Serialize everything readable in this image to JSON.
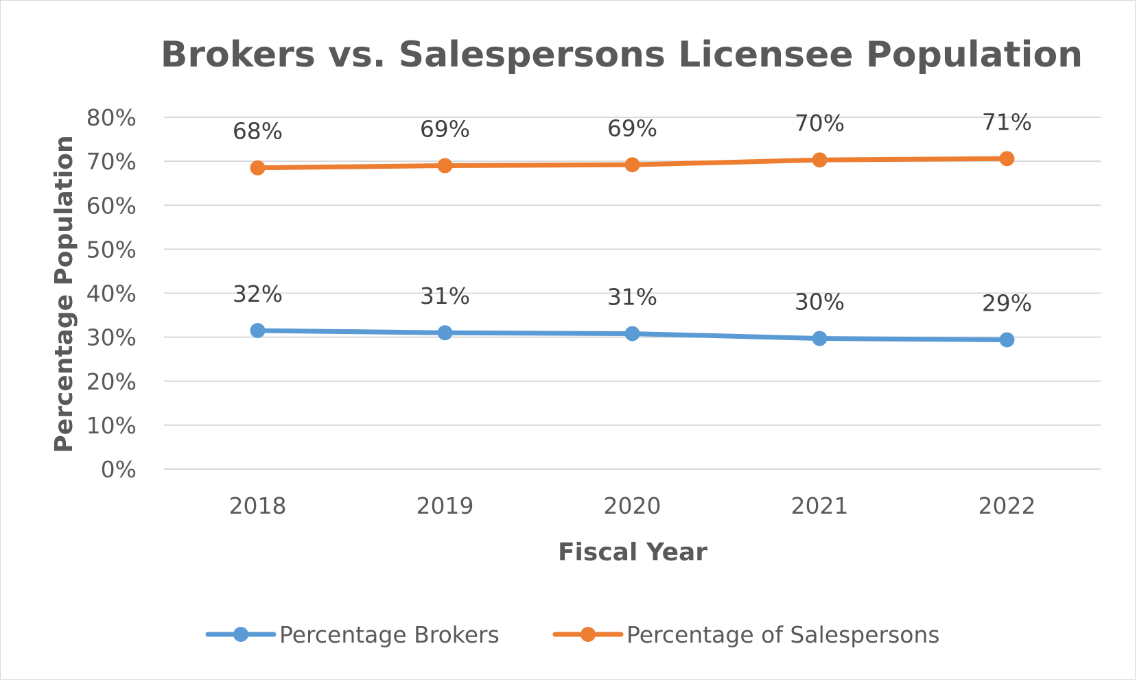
{
  "chart_data": {
    "type": "line",
    "title": "Brokers vs. Salespersons Licensee Population",
    "xlabel": "Fiscal Year",
    "ylabel": "Percentage Population",
    "categories": [
      "2018",
      "2019",
      "2020",
      "2021",
      "2022"
    ],
    "yticks": [
      "0%",
      "10%",
      "20%",
      "30%",
      "40%",
      "50%",
      "60%",
      "70%",
      "80%"
    ],
    "ylim": [
      0,
      80
    ],
    "grid": true,
    "legend_position": "bottom",
    "series": [
      {
        "name": "Percentage Brokers",
        "color": "#5b9bd5",
        "values": [
          31.5,
          31.0,
          30.8,
          29.7,
          29.4
        ],
        "labels": [
          "32%",
          "31%",
          "31%",
          "30%",
          "29%"
        ]
      },
      {
        "name": "Percentage of Salespersons",
        "color": "#ed7d31",
        "values": [
          68.5,
          69.0,
          69.2,
          70.3,
          70.6
        ],
        "labels": [
          "68%",
          "69%",
          "69%",
          "70%",
          "71%"
        ]
      }
    ]
  }
}
